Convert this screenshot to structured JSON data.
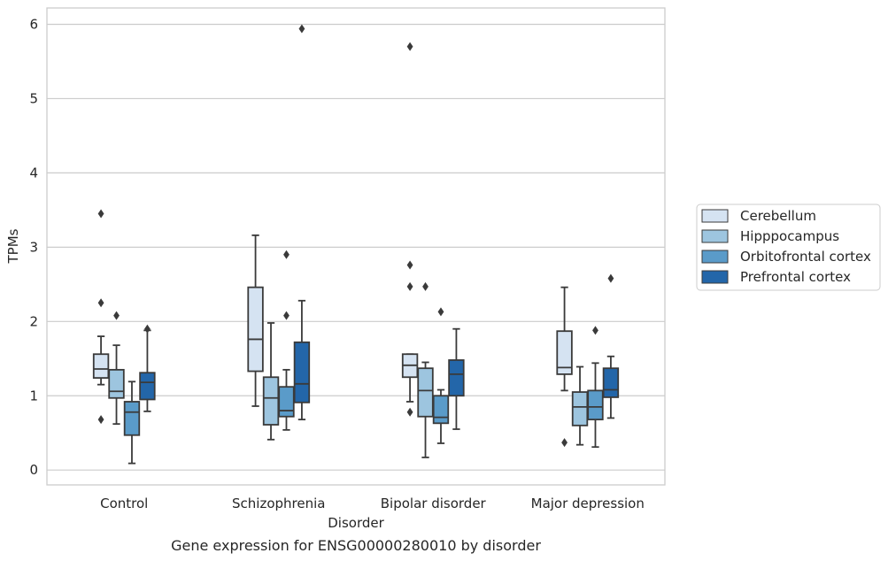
{
  "caption": "Gene expression for ENSG00000280010 by disorder",
  "chart_data": {
    "type": "boxplot",
    "title": "",
    "xlabel": "Disorder",
    "ylabel": "TPMs",
    "ylim": [
      -0.2,
      6.22
    ],
    "yticks": [
      0,
      1,
      2,
      3,
      4,
      5,
      6
    ],
    "grid": "horizontal",
    "legend_placement": "right",
    "categories": [
      "Control",
      "Schizophrenia",
      "Bipolar disorder",
      "Major depression"
    ],
    "series": [
      {
        "name": "Cerebellum",
        "color": "#d5e3f2",
        "boxes": [
          {
            "whisker_low": 1.15,
            "q1": 1.24,
            "median": 1.36,
            "q3": 1.56,
            "whisker_high": 1.8,
            "outliers": [
              3.45,
              2.25,
              0.68
            ]
          },
          {
            "whisker_low": 0.86,
            "q1": 1.33,
            "median": 1.76,
            "q3": 2.46,
            "whisker_high": 3.16,
            "outliers": []
          },
          {
            "whisker_low": 0.92,
            "q1": 1.25,
            "median": 1.41,
            "q3": 1.56,
            "whisker_high": 1.56,
            "outliers": [
              5.7,
              2.76,
              2.47,
              0.78
            ]
          },
          {
            "whisker_low": 1.07,
            "q1": 1.29,
            "median": 1.38,
            "q3": 1.87,
            "whisker_high": 2.46,
            "outliers": [
              0.37
            ]
          }
        ]
      },
      {
        "name": "Hipppocampus",
        "color": "#9dc5df",
        "boxes": [
          {
            "whisker_low": 0.62,
            "q1": 0.97,
            "median": 1.06,
            "q3": 1.35,
            "whisker_high": 1.68,
            "outliers": [
              2.08
            ]
          },
          {
            "whisker_low": 0.41,
            "q1": 0.61,
            "median": 0.97,
            "q3": 1.25,
            "whisker_high": 1.98,
            "outliers": []
          },
          {
            "whisker_low": 0.17,
            "q1": 0.72,
            "median": 1.07,
            "q3": 1.37,
            "whisker_high": 1.45,
            "outliers": [
              2.47
            ]
          },
          {
            "whisker_low": 0.34,
            "q1": 0.6,
            "median": 0.85,
            "q3": 1.05,
            "whisker_high": 1.39,
            "outliers": []
          }
        ]
      },
      {
        "name": "Orbitofrontal cortex",
        "color": "#5a9bc9",
        "boxes": [
          {
            "whisker_low": 0.09,
            "q1": 0.47,
            "median": 0.78,
            "q3": 0.92,
            "whisker_high": 1.19,
            "outliers": []
          },
          {
            "whisker_low": 0.54,
            "q1": 0.72,
            "median": 0.8,
            "q3": 1.12,
            "whisker_high": 1.35,
            "outliers": [
              2.9,
              2.08
            ]
          },
          {
            "whisker_low": 0.36,
            "q1": 0.63,
            "median": 0.71,
            "q3": 1.0,
            "whisker_high": 1.08,
            "outliers": [
              2.13
            ]
          },
          {
            "whisker_low": 0.31,
            "q1": 0.68,
            "median": 0.85,
            "q3": 1.07,
            "whisker_high": 1.44,
            "outliers": [
              1.88
            ]
          }
        ]
      },
      {
        "name": "Prefrontal cortex",
        "color": "#2366a9",
        "boxes": [
          {
            "whisker_low": 0.79,
            "q1": 0.95,
            "median": 1.18,
            "q3": 1.31,
            "whisker_high": 1.88,
            "outliers": [
              1.9
            ]
          },
          {
            "whisker_low": 0.68,
            "q1": 0.91,
            "median": 1.16,
            "q3": 1.72,
            "whisker_high": 2.28,
            "outliers": [
              5.94
            ]
          },
          {
            "whisker_low": 0.55,
            "q1": 1.0,
            "median": 1.29,
            "q3": 1.48,
            "whisker_high": 1.9,
            "outliers": []
          },
          {
            "whisker_low": 0.7,
            "q1": 0.98,
            "median": 1.08,
            "q3": 1.37,
            "whisker_high": 1.53,
            "outliers": [
              2.58
            ]
          }
        ]
      }
    ]
  }
}
